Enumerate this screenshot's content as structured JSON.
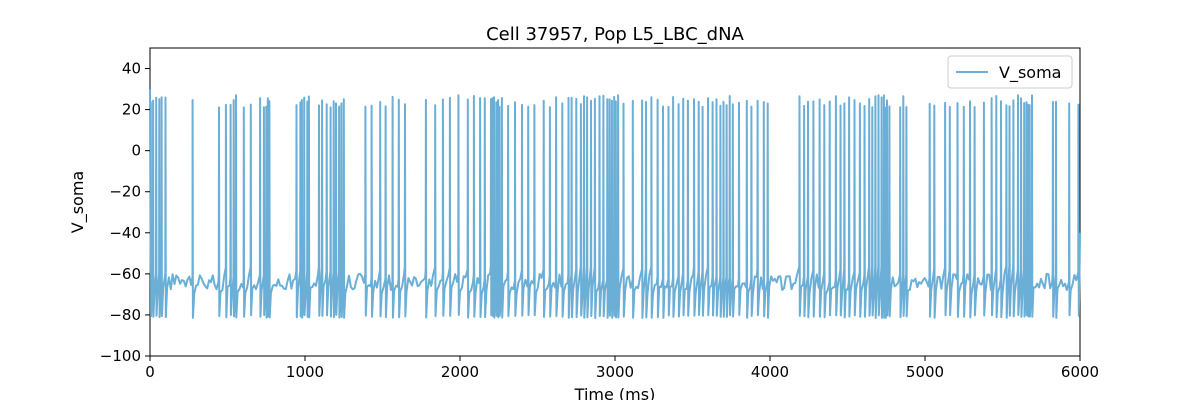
{
  "chart_data": {
    "type": "line",
    "title": "Cell 37957, Pop L5_LBC_dNA",
    "xlabel": "Time (ms)",
    "ylabel": "V_soma",
    "xlim": [
      0,
      6000
    ],
    "ylim": [
      -100,
      50
    ],
    "xticks": [
      0,
      1000,
      2000,
      3000,
      4000,
      5000,
      6000
    ],
    "yticks": [
      -100,
      -80,
      -60,
      -40,
      -20,
      0,
      20,
      40
    ],
    "grid": false,
    "legend": {
      "placement": "top-right",
      "entries": [
        "V_soma"
      ]
    },
    "series": [
      {
        "name": "V_soma",
        "color": "#6baed6",
        "resting_mV": -64,
        "spike_peak_mV": 27,
        "spike_trough_mV": -80,
        "end_value_mV": -40,
        "spike_times_ms": [
          5,
          20,
          40,
          60,
          75,
          100,
          275,
          445,
          490,
          520,
          540,
          555,
          605,
          650,
          710,
          735,
          750,
          760,
          770,
          945,
          970,
          980,
          995,
          1015,
          1025,
          1090,
          1110,
          1140,
          1165,
          1185,
          1200,
          1220,
          1235,
          1250,
          1390,
          1430,
          1485,
          1520,
          1565,
          1605,
          1645,
          1780,
          1840,
          1890,
          1935,
          1990,
          2050,
          2090,
          2130,
          2160,
          2200,
          2210,
          2220,
          2235,
          2245,
          2255,
          2270,
          2310,
          2355,
          2400,
          2440,
          2480,
          2540,
          2580,
          2620,
          2660,
          2700,
          2720,
          2750,
          2780,
          2800,
          2820,
          2845,
          2870,
          2900,
          2925,
          2950,
          2965,
          2980,
          2995,
          3005,
          3020,
          3055,
          3115,
          3175,
          3200,
          3235,
          3275,
          3310,
          3345,
          3375,
          3410,
          3440,
          3470,
          3510,
          3540,
          3565,
          3600,
          3630,
          3655,
          3680,
          3700,
          3720,
          3740,
          3760,
          3800,
          3850,
          3880,
          3920,
          3960,
          3985,
          4190,
          4220,
          4245,
          4280,
          4320,
          4350,
          4385,
          4425,
          4455,
          4480,
          4510,
          4545,
          4580,
          4610,
          4640,
          4660,
          4680,
          4700,
          4720,
          4735,
          4745,
          4755,
          4770,
          4840,
          4860,
          4880,
          5030,
          5060,
          5130,
          5160,
          5210,
          5250,
          5290,
          5320,
          5380,
          5430,
          5460,
          5490,
          5525,
          5545,
          5570,
          5600,
          5620,
          5640,
          5655,
          5665,
          5675,
          5690,
          5825,
          5845,
          5930,
          5990
        ]
      }
    ]
  }
}
